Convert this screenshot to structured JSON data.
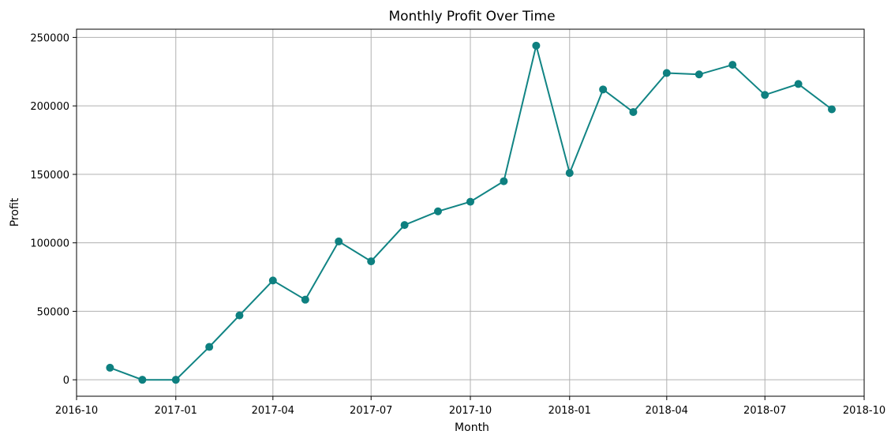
{
  "colors": {
    "line": "#118484",
    "marker": "#0e8080",
    "grid": "#b0b0b0",
    "frame": "#000000"
  },
  "chart_data": {
    "type": "line",
    "title": "Monthly Profit Over Time",
    "xlabel": "Month",
    "ylabel": "Profit",
    "x_is_date": true,
    "xlim": [
      "2016-10-01",
      "2018-10-01"
    ],
    "ylim": [
      -12000,
      256000
    ],
    "grid": true,
    "legend": "none",
    "x_ticks": [
      "2016-10-01",
      "2017-01-01",
      "2017-04-01",
      "2017-07-01",
      "2017-10-01",
      "2018-01-01",
      "2018-04-01",
      "2018-07-01",
      "2018-10-01"
    ],
    "x_tick_labels": [
      "2016-10",
      "2017-01",
      "2017-04",
      "2017-07",
      "2017-10",
      "2018-01",
      "2018-04",
      "2018-07",
      "2018-10"
    ],
    "y_ticks": [
      0,
      50000,
      100000,
      150000,
      200000,
      250000
    ],
    "y_tick_labels": [
      "0",
      "50000",
      "100000",
      "150000",
      "200000",
      "250000"
    ],
    "series": [
      {
        "x": [
          "2016-11-01",
          "2016-12-01",
          "2017-01-01",
          "2017-02-01",
          "2017-03-01",
          "2017-04-01",
          "2017-05-01",
          "2017-06-01",
          "2017-07-01",
          "2017-08-01",
          "2017-09-01",
          "2017-10-01",
          "2017-11-01",
          "2017-12-01",
          "2018-01-01",
          "2018-02-01",
          "2018-03-01",
          "2018-04-01",
          "2018-05-01",
          "2018-06-01",
          "2018-07-01",
          "2018-08-01",
          "2018-09-01"
        ],
        "values": [
          8800,
          0,
          0,
          24000,
          47000,
          72500,
          58500,
          101000,
          86500,
          113000,
          123000,
          130000,
          145000,
          244000,
          151000,
          212000,
          195500,
          224000,
          223000,
          230000,
          208000,
          216000,
          197500
        ]
      }
    ]
  }
}
